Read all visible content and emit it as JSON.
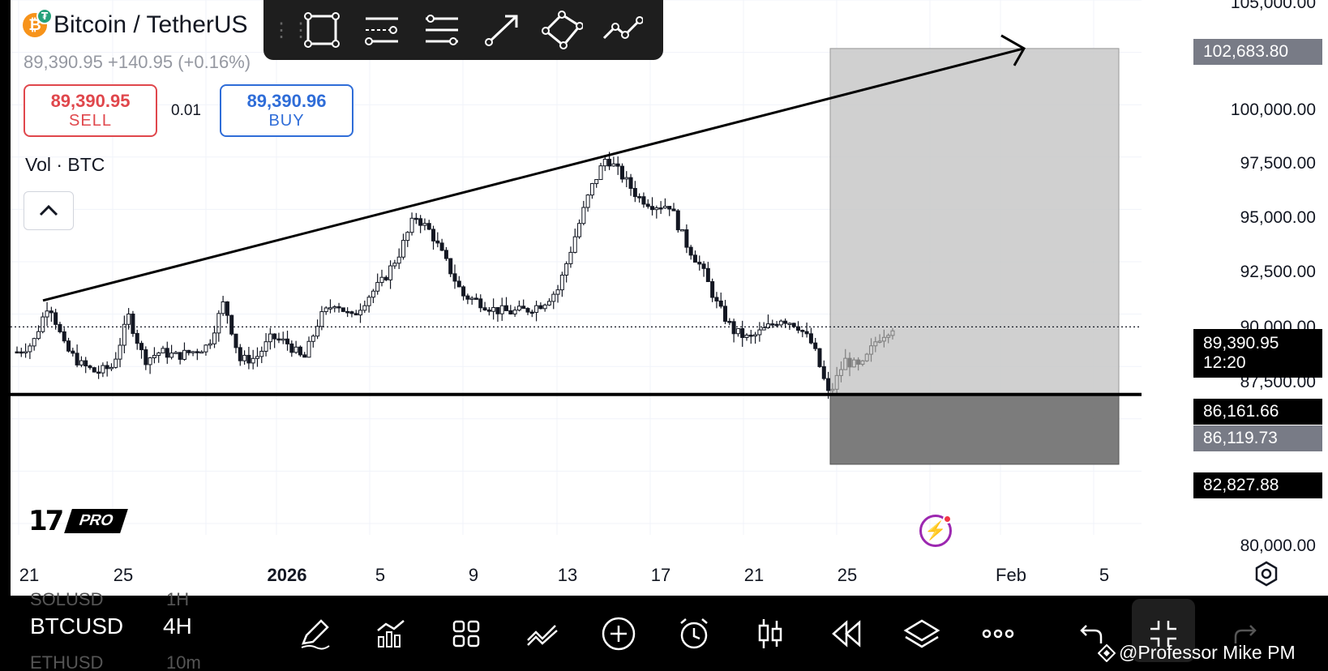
{
  "header": {
    "title": "Bitcoin / TetherUS",
    "coin_symbol": "₿",
    "badge_symbol": "₮",
    "ohlc": "89,390.95  +140.95 (+0.16%)",
    "sell_price": "89,390.95",
    "sell_label": "SELL",
    "spread": "0.01",
    "buy_price": "89,390.96",
    "buy_label": "BUY",
    "volume_label": "Vol · BTC"
  },
  "logo": {
    "mark": "17",
    "pro": "PRO"
  },
  "drawing_toolbar": {
    "tools": [
      "rectangle-icon",
      "parallel-channel-icon",
      "fib-retracement-icon",
      "arrow-line-icon",
      "rotated-rectangle-icon",
      "path-icon"
    ]
  },
  "price_axis": {
    "ticks": [
      "105,000.00",
      "100,000.00",
      "97,500.00",
      "95,000.00",
      "92,500.00",
      "90,000.00",
      "87,500.00",
      "80,000.00"
    ],
    "labels": {
      "target": "102,683.80",
      "current_price": "89,390.95",
      "countdown": "12:20",
      "support": "86,161.66",
      "entry": "86,119.73",
      "stop": "82,827.88"
    }
  },
  "time_axis": {
    "ticks": [
      {
        "label": "21",
        "bold": false
      },
      {
        "label": "25",
        "bold": false
      },
      {
        "label": "2026",
        "bold": true
      },
      {
        "label": "5",
        "bold": false
      },
      {
        "label": "9",
        "bold": false
      },
      {
        "label": "13",
        "bold": false
      },
      {
        "label": "17",
        "bold": false
      },
      {
        "label": "21",
        "bold": false
      },
      {
        "label": "25",
        "bold": false
      },
      {
        "label": "Feb",
        "bold": false
      },
      {
        "label": "5",
        "bold": false
      }
    ]
  },
  "chart_data": {
    "type": "candlestick",
    "symbol": "BTCUSD",
    "interval": "4H",
    "ylim": [
      80000,
      105000
    ],
    "current_price": 89390.95,
    "support_level": 86161.66,
    "long_position": {
      "target": 102683.8,
      "entry": 86119.73,
      "stop": 82827.88
    },
    "trendline": {
      "start_price": 90650,
      "end_price": 102683.8
    },
    "price_path": [
      88200,
      88600,
      90600,
      88400,
      87600,
      87200,
      87500,
      89900,
      87800,
      88200,
      88000,
      88200,
      88500,
      90600,
      87800,
      87900,
      88900,
      88600,
      87800,
      89800,
      90600,
      89800,
      90800,
      91600,
      92900,
      94700,
      93900,
      92400,
      90900,
      90600,
      90200,
      90100,
      90200,
      90500,
      91200,
      93600,
      95900,
      97500,
      96600,
      95600,
      95200,
      95200,
      93400,
      92200,
      90400,
      89200,
      88800,
      89300,
      89800,
      89500,
      88500,
      86100,
      87800,
      87400,
      88800,
      89390
    ]
  },
  "bottom_bar": {
    "symbol": "BTCUSD",
    "timeframe": "4H",
    "ghost_prev_symbol": "SOLUSD",
    "ghost_prev_tf": "1H",
    "ghost_next_symbol": "ETHUSD",
    "ghost_next_tf": "10m",
    "icons": [
      "pencil-icon",
      "indicators-icon",
      "grid-icon",
      "compare-icon",
      "add-icon",
      "alarm-icon",
      "candles-icon",
      "replay-icon",
      "layers-icon",
      "more-icon",
      "undo-icon",
      "collapse-icon",
      "redo-icon"
    ]
  },
  "watermark": "@Professor Mike PM"
}
